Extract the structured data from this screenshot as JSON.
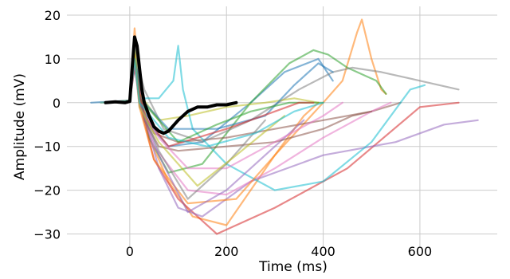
{
  "chart_data": {
    "type": "line",
    "title": "",
    "xlabel": "Time (ms)",
    "ylabel": "Amplitude (mV)",
    "xlim": [
      -130,
      760
    ],
    "ylim": [
      -33,
      22
    ],
    "xticks": [
      0,
      200,
      400,
      600
    ],
    "yticks": [
      -30,
      -20,
      -10,
      0,
      10,
      20
    ],
    "grid": true,
    "legend": "none",
    "series": [
      {
        "color": "#1f77b4",
        "x": [
          -80,
          0,
          10,
          20,
          40,
          80,
          150,
          250,
          320,
          390,
          420
        ],
        "y": [
          0,
          0.5,
          14,
          3,
          -5,
          -10,
          -9,
          0,
          7,
          10,
          5
        ]
      },
      {
        "color": "#ff7f0e",
        "x": [
          -60,
          0,
          10,
          20,
          40,
          80,
          130,
          200,
          300,
          400,
          440,
          470,
          480,
          500,
          520,
          530
        ],
        "y": [
          0,
          0.5,
          17,
          5,
          -8,
          -18,
          -26,
          -28,
          -12,
          0,
          5,
          16,
          19,
          10,
          3,
          2
        ]
      },
      {
        "color": "#2ca02c",
        "x": [
          -50,
          0,
          10,
          20,
          40,
          80,
          150,
          250,
          330,
          380,
          410,
          450,
          490,
          510,
          530
        ],
        "y": [
          0,
          0.5,
          12,
          2,
          -8,
          -16,
          -14,
          0,
          9,
          12,
          11,
          8,
          6,
          5,
          2
        ]
      },
      {
        "color": "#d62728",
        "x": [
          -50,
          0,
          10,
          20,
          50,
          100,
          180,
          300,
          450,
          600,
          680
        ],
        "y": [
          0,
          0.5,
          11,
          0,
          -13,
          -22,
          -30,
          -24,
          -15,
          -1,
          0
        ]
      },
      {
        "color": "#9467bd",
        "x": [
          -40,
          0,
          10,
          30,
          60,
          100,
          150,
          250,
          400,
          550,
          650,
          720
        ],
        "y": [
          0,
          0.5,
          10,
          -3,
          -15,
          -24,
          -26,
          -18,
          -12,
          -9,
          -5,
          -4
        ]
      },
      {
        "color": "#8c564b",
        "x": [
          -40,
          0,
          10,
          20,
          50,
          100,
          200,
          300,
          400,
          500,
          560
        ],
        "y": [
          0,
          0.5,
          9,
          0,
          -7,
          -9,
          -8,
          -6,
          -4,
          -2,
          0
        ]
      },
      {
        "color": "#e377c2",
        "x": [
          -40,
          0,
          10,
          20,
          50,
          120,
          200,
          300,
          400,
          500,
          540
        ],
        "y": [
          0,
          0.5,
          10,
          0,
          -10,
          -20,
          -21,
          -15,
          -8,
          -2,
          0
        ]
      },
      {
        "color": "#7f7f7f",
        "x": [
          -40,
          0,
          10,
          30,
          70,
          150,
          250,
          350,
          420,
          460,
          520,
          600,
          680
        ],
        "y": [
          0,
          0.5,
          12,
          3,
          -6,
          -9,
          -4,
          3,
          7,
          8,
          7,
          5,
          3
        ]
      },
      {
        "color": "#bcbd22",
        "x": [
          -40,
          0,
          10,
          20,
          60,
          120,
          200,
          280,
          340,
          390
        ],
        "y": [
          0,
          0.5,
          12,
          2,
          -4,
          -3,
          -1,
          0,
          1,
          0
        ]
      },
      {
        "color": "#17becf",
        "x": [
          -60,
          0,
          10,
          20,
          60,
          90,
          100,
          110,
          130,
          200,
          300,
          400,
          500,
          580,
          610
        ],
        "y": [
          0,
          0.5,
          8,
          1,
          1,
          5,
          13,
          3,
          -6,
          -14,
          -20,
          -18,
          -9,
          3,
          4
        ]
      },
      {
        "color": "#1f77b4",
        "x": [
          -40,
          0,
          10,
          30,
          80,
          180,
          280,
          340,
          390,
          420
        ],
        "y": [
          0,
          0.5,
          10,
          0,
          -6,
          -6,
          -3,
          4,
          9,
          7
        ]
      },
      {
        "color": "#ff7f0e",
        "x": [
          -40,
          0,
          10,
          20,
          50,
          120,
          220,
          300,
          360,
          390
        ],
        "y": [
          0,
          0.5,
          11,
          -1,
          -13,
          -23,
          -22,
          -12,
          -3,
          0
        ]
      },
      {
        "color": "#2ca02c",
        "x": [
          -40,
          0,
          10,
          20,
          60,
          100,
          180,
          250,
          330,
          400
        ],
        "y": [
          0,
          0.5,
          9,
          1,
          -4,
          -9,
          -5,
          -2,
          0,
          0
        ]
      },
      {
        "color": "#d62728",
        "x": [
          -40,
          0,
          10,
          30,
          80,
          200,
          300,
          350,
          380
        ],
        "y": [
          0,
          0.5,
          8,
          -3,
          -10,
          -6,
          -2,
          0,
          0
        ]
      },
      {
        "color": "#9467bd",
        "x": [
          -40,
          0,
          10,
          20,
          60,
          120,
          200,
          300,
          360
        ],
        "y": [
          0,
          0.5,
          10,
          0,
          -12,
          -25,
          -20,
          -10,
          -4
        ]
      },
      {
        "color": "#8c564b",
        "x": [
          -40,
          0,
          10,
          30,
          60,
          100,
          200,
          300,
          400,
          460,
          500
        ],
        "y": [
          0,
          0.5,
          9,
          -4,
          -10,
          -11,
          -10,
          -9,
          -6,
          -3,
          -2
        ]
      },
      {
        "color": "#e377c2",
        "x": [
          -40,
          0,
          10,
          20,
          60,
          120,
          200,
          300,
          400,
          440
        ],
        "y": [
          0,
          0.5,
          9,
          -1,
          -8,
          -15,
          -15,
          -9,
          -3,
          0
        ]
      },
      {
        "color": "#7f7f7f",
        "x": [
          -40,
          0,
          10,
          20,
          60,
          120,
          200,
          280
        ],
        "y": [
          0,
          0.5,
          10,
          0,
          -11,
          -22,
          -14,
          -4
        ]
      },
      {
        "color": "#bcbd22",
        "x": [
          -40,
          0,
          10,
          20,
          60,
          140,
          220,
          320
        ],
        "y": [
          0,
          0.5,
          11,
          -1,
          -9,
          -19,
          -12,
          -3
        ]
      },
      {
        "color": "#17becf",
        "x": [
          -40,
          0,
          10,
          20,
          80,
          160,
          260,
          340,
          400
        ],
        "y": [
          0,
          0.5,
          10,
          0,
          -8,
          -10,
          -7,
          -2,
          0
        ]
      },
      {
        "color": "#000000",
        "emphasis": true,
        "x": [
          -50,
          -30,
          -10,
          0,
          5,
          10,
          15,
          20,
          25,
          30,
          40,
          50,
          60,
          70,
          80,
          100,
          120,
          140,
          160,
          180,
          200,
          220
        ],
        "y": [
          0,
          0.2,
          0,
          0.3,
          8,
          15,
          13,
          8,
          3,
          0,
          -3,
          -5.5,
          -6.5,
          -7,
          -6.5,
          -4,
          -2,
          -1,
          -1,
          -0.5,
          -0.5,
          0
        ]
      }
    ]
  }
}
